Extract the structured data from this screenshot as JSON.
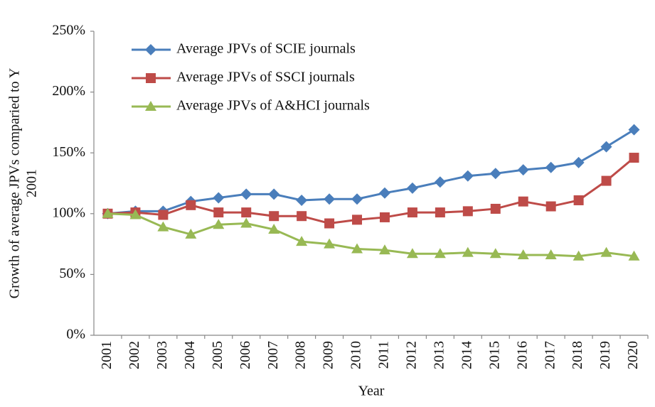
{
  "chart_data": {
    "type": "line",
    "ylabel": [
      "Growth of average JPVs comparied to Y",
      "2001"
    ],
    "xlabel": "Year",
    "categories": [
      "2001",
      "2002",
      "2003",
      "2004",
      "2005",
      "2006",
      "2007",
      "2008",
      "2009",
      "2010",
      "2011",
      "2012",
      "2013",
      "2014",
      "2015",
      "2016",
      "2017",
      "2018",
      "2019",
      "2020"
    ],
    "series": [
      {
        "name": "Average JPVs of SCIE journals",
        "color": "#4a7ebb",
        "marker": "diamond",
        "values": [
          100,
          102,
          102,
          110,
          113,
          116,
          116,
          111,
          112,
          112,
          117,
          121,
          126,
          131,
          133,
          136,
          138,
          142,
          155,
          169
        ]
      },
      {
        "name": "Average JPVs of SSCI journals",
        "color": "#be4b48",
        "marker": "square",
        "values": [
          100,
          101,
          99,
          107,
          101,
          101,
          98,
          98,
          92,
          95,
          97,
          101,
          101,
          102,
          104,
          110,
          106,
          111,
          127,
          146
        ]
      },
      {
        "name": "Average JPVs of A&HCI journals",
        "color": "#98b954",
        "marker": "triangle",
        "values": [
          100,
          99,
          89,
          83,
          91,
          92,
          87,
          77,
          75,
          71,
          70,
          67,
          67,
          68,
          67,
          66,
          66,
          65,
          68,
          65
        ]
      }
    ],
    "ylim": [
      0,
      250
    ],
    "yticks": [
      {
        "value": 0,
        "label": "0%"
      },
      {
        "value": 50,
        "label": "50%"
      },
      {
        "value": 100,
        "label": "100%"
      },
      {
        "value": 150,
        "label": "150%"
      },
      {
        "value": 200,
        "label": "200%"
      },
      {
        "value": 250,
        "label": "250%"
      }
    ],
    "grid": false,
    "legend": "upper-left"
  }
}
